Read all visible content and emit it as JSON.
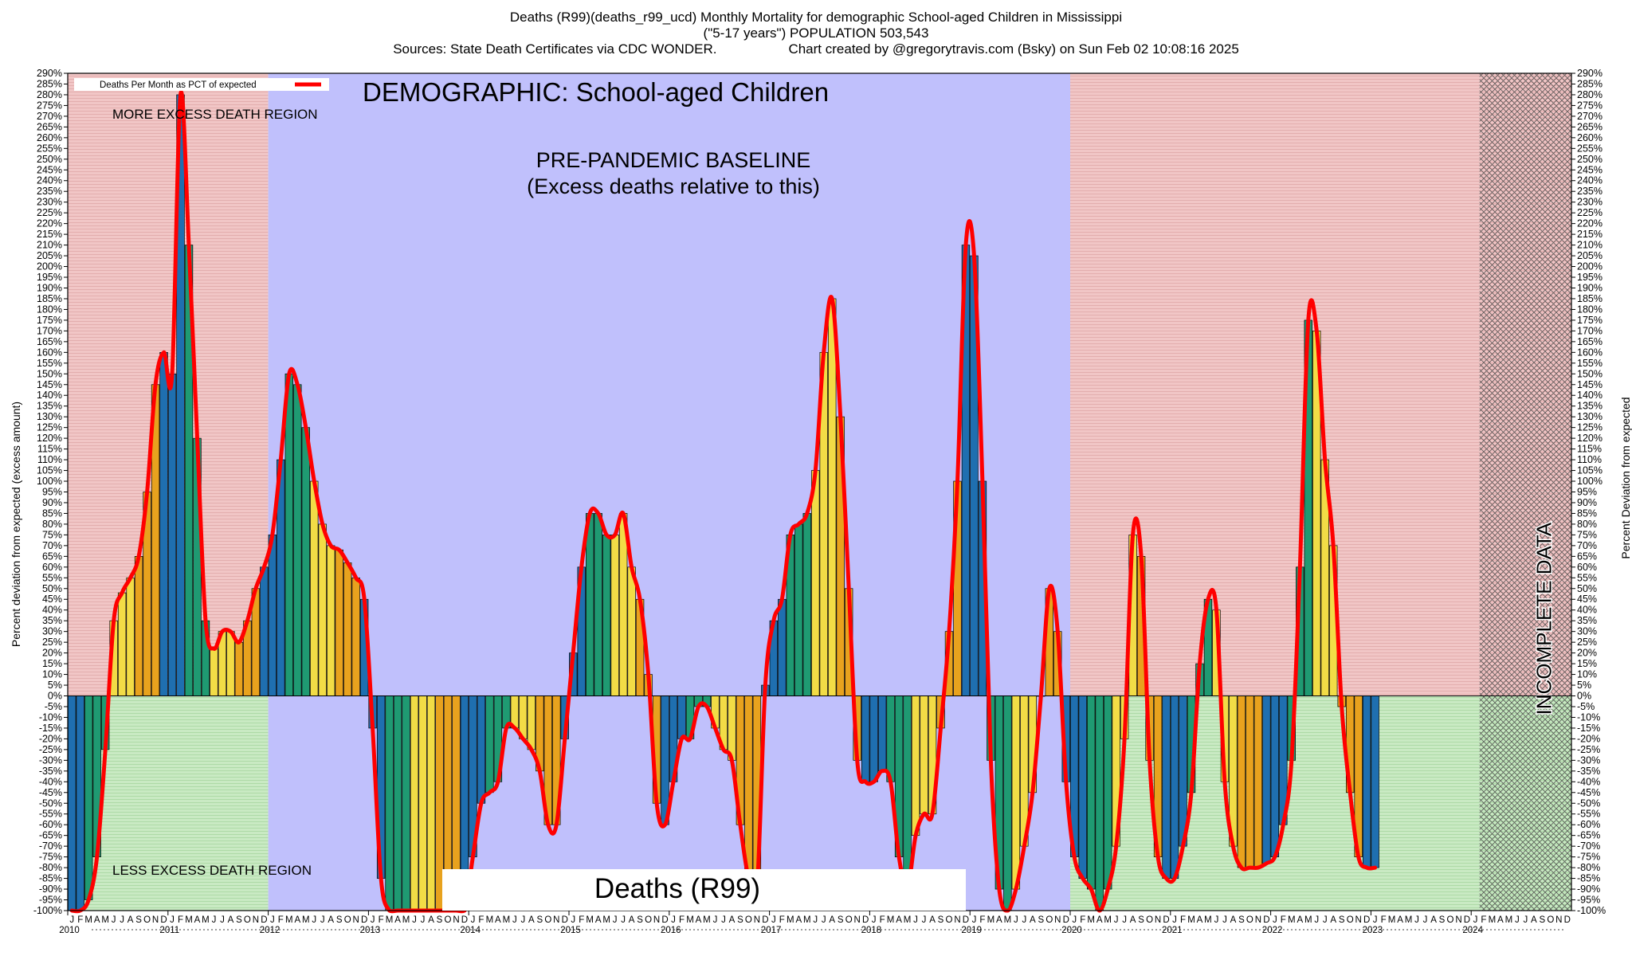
{
  "header": {
    "line1": "Deaths (R99)(deaths_r99_ucd) Monthly Mortality for demographic School-aged Children in Mississippi",
    "line2": "(\"5-17 years\") POPULATION 503,543",
    "line3a": "Sources: State Death Certificates via CDC WONDER.",
    "line3b": "Chart created by @gregorytravis.com (Bsky) on Sun Feb 02 10:08:16 2025"
  },
  "chart_data": {
    "type": "bar",
    "title": "DEMOGRAPHIC: School-aged Children",
    "ylabel": "Percent deviation from expected (excess amount)",
    "ylabel_right": "Percent Deviation from expected",
    "ylim": [
      -100,
      290
    ],
    "ytick_step": 5,
    "legend": {
      "label": "Deaths Per Month as PCT of expected",
      "placement": "top-left"
    },
    "annotations": {
      "more_excess": "MORE EXCESS DEATH REGION",
      "less_excess": "LESS EXCESS DEATH REGION",
      "baseline_line1": "PRE-PANDEMIC BASELINE",
      "baseline_line2": "(Excess deaths relative to this)",
      "incomplete": "INCOMPLETE DATA",
      "caption": "Deaths (R99)"
    },
    "month_letters": [
      "J",
      "F",
      "M",
      "A",
      "M",
      "J",
      "J",
      "A",
      "S",
      "O",
      "N",
      "D"
    ],
    "years": [
      "2010",
      "2011",
      "2012",
      "2013",
      "2014",
      "2015",
      "2016",
      "2017",
      "2018",
      "2019",
      "2020",
      "2021",
      "2022",
      "2023",
      "2024"
    ],
    "regions": [
      {
        "kind": "excess",
        "from": "2010-01",
        "to": "2011-12"
      },
      {
        "kind": "baseline",
        "from": "2012-01",
        "to": "2019-12"
      },
      {
        "kind": "excess",
        "from": "2020-01",
        "to": "2024-01"
      },
      {
        "kind": "incomplete",
        "from": "2024-02",
        "to": "2024-12"
      }
    ],
    "values": [
      -100,
      -100,
      -95,
      -75,
      -25,
      35,
      48,
      55,
      65,
      95,
      145,
      160,
      150,
      280,
      210,
      120,
      35,
      22,
      30,
      30,
      25,
      35,
      50,
      60,
      75,
      110,
      150,
      145,
      125,
      100,
      80,
      70,
      68,
      62,
      55,
      45,
      -15,
      -85,
      -100,
      -100,
      -100,
      -100,
      -100,
      -100,
      -100,
      -100,
      -100,
      -100,
      -75,
      -50,
      -45,
      -40,
      -15,
      -15,
      -20,
      -25,
      -35,
      -60,
      -60,
      -20,
      20,
      60,
      85,
      85,
      75,
      75,
      85,
      60,
      45,
      10,
      -50,
      -60,
      -40,
      -20,
      -20,
      -5,
      -5,
      -15,
      -25,
      -30,
      -60,
      -85,
      -90,
      5,
      35,
      45,
      75,
      80,
      85,
      105,
      160,
      185,
      130,
      50,
      -30,
      -40,
      -40,
      -35,
      -40,
      -75,
      -90,
      -65,
      -55,
      -55,
      -15,
      30,
      100,
      210,
      205,
      100,
      -30,
      -90,
      -100,
      -90,
      -70,
      -45,
      0,
      50,
      30,
      -40,
      -75,
      -85,
      -90,
      -100,
      -90,
      -70,
      -20,
      75,
      65,
      -30,
      -75,
      -85,
      -85,
      -70,
      -45,
      15,
      45,
      40,
      -40,
      -70,
      -80,
      -80,
      -80,
      -78,
      -75,
      -60,
      -30,
      60,
      175,
      170,
      110,
      70,
      -5,
      -45,
      -75,
      -80,
      -80
    ]
  }
}
